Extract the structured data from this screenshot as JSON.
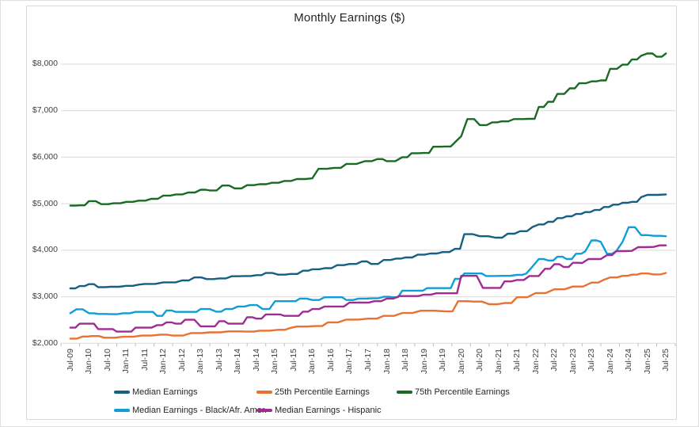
{
  "chart": {
    "title": "Monthly Earnings ($)",
    "y_axis": {
      "labels": [
        "$2,000",
        "$3,000",
        "$4,000",
        "$5,000",
        "$6,000",
        "$7,000",
        "$8,000"
      ]
    }
  },
  "chart_data": {
    "type": "line",
    "title": "Monthly Earnings ($)",
    "x_axis_note": "monthly data; x encoded as months since Jul-2009; axis labeled every 6 months",
    "months_per_tick": 6,
    "x_tick_labels": [
      "Jul-09",
      "Jan-10",
      "Jul-10",
      "Jan-11",
      "Jul-11",
      "Jan-12",
      "Jul-12",
      "Jan-13",
      "Jul-13",
      "Jan-14",
      "Jul-14",
      "Jan-15",
      "Jul-15",
      "Jan-16",
      "Jul-16",
      "Jan-17",
      "Jul-17",
      "Jan-18",
      "Jul-18",
      "Jan-19",
      "Jul-19",
      "Jan-20",
      "Jul-20",
      "Jan-21",
      "Jul-21",
      "Jan-22",
      "Jul-22",
      "Jan-23",
      "Jul-23",
      "Jan-24",
      "Jul-24",
      "Jan-25",
      "Jul-25"
    ],
    "ylim": [
      2000,
      8500
    ],
    "y_gridlines": [
      2000,
      3000,
      4000,
      5000,
      6000,
      7000,
      8000
    ],
    "grid": true,
    "legend_position": "bottom",
    "axis_color": "#D9D9D9",
    "tick_color": "#BFBFBF",
    "series": [
      {
        "name": "Median Earnings",
        "color": "#156082",
        "points": [
          [
            0,
            3180
          ],
          [
            3,
            3230
          ],
          [
            6,
            3270
          ],
          [
            9,
            3205
          ],
          [
            13,
            3215
          ],
          [
            18,
            3235
          ],
          [
            22,
            3260
          ],
          [
            24,
            3275
          ],
          [
            30,
            3310
          ],
          [
            34,
            3310
          ],
          [
            36,
            3350
          ],
          [
            40,
            3415
          ],
          [
            44,
            3380
          ],
          [
            48,
            3395
          ],
          [
            52,
            3440
          ],
          [
            56,
            3445
          ],
          [
            60,
            3465
          ],
          [
            63,
            3510
          ],
          [
            67,
            3475
          ],
          [
            71,
            3490
          ],
          [
            75,
            3560
          ],
          [
            78,
            3590
          ],
          [
            82,
            3615
          ],
          [
            86,
            3680
          ],
          [
            90,
            3705
          ],
          [
            94,
            3760
          ],
          [
            97,
            3705
          ],
          [
            101,
            3790
          ],
          [
            105,
            3820
          ],
          [
            108,
            3845
          ],
          [
            112,
            3905
          ],
          [
            116,
            3930
          ],
          [
            120,
            3960
          ],
          [
            124,
            4030
          ],
          [
            127,
            4345
          ],
          [
            132,
            4300
          ],
          [
            137,
            4270
          ],
          [
            141,
            4355
          ],
          [
            145,
            4410
          ],
          [
            149,
            4500
          ],
          [
            151,
            4555
          ],
          [
            154,
            4610
          ],
          [
            157,
            4690
          ],
          [
            160,
            4730
          ],
          [
            163,
            4780
          ],
          [
            166,
            4820
          ],
          [
            169,
            4865
          ],
          [
            172,
            4930
          ],
          [
            175,
            4980
          ],
          [
            178,
            5020
          ],
          [
            181,
            5040
          ],
          [
            184,
            5140
          ],
          [
            186,
            5190
          ],
          [
            192,
            5200
          ]
        ]
      },
      {
        "name": "25th Percentile Earnings",
        "color": "#E97132",
        "points": [
          [
            0,
            2100
          ],
          [
            4,
            2145
          ],
          [
            7,
            2155
          ],
          [
            11,
            2120
          ],
          [
            17,
            2140
          ],
          [
            23,
            2165
          ],
          [
            29,
            2185
          ],
          [
            33,
            2165
          ],
          [
            39,
            2220
          ],
          [
            45,
            2235
          ],
          [
            51,
            2255
          ],
          [
            57,
            2250
          ],
          [
            61,
            2270
          ],
          [
            67,
            2290
          ],
          [
            71,
            2330
          ],
          [
            73,
            2360
          ],
          [
            79,
            2370
          ],
          [
            83,
            2450
          ],
          [
            89,
            2510
          ],
          [
            96,
            2530
          ],
          [
            101,
            2590
          ],
          [
            107,
            2650
          ],
          [
            113,
            2700
          ],
          [
            121,
            2685
          ],
          [
            125,
            2905
          ],
          [
            130,
            2895
          ],
          [
            135,
            2840
          ],
          [
            140,
            2865
          ],
          [
            144,
            2990
          ],
          [
            150,
            3080
          ],
          [
            156,
            3160
          ],
          [
            162,
            3220
          ],
          [
            168,
            3305
          ],
          [
            172,
            3365
          ],
          [
            174,
            3415
          ],
          [
            178,
            3450
          ],
          [
            181,
            3475
          ],
          [
            184,
            3500
          ],
          [
            188,
            3480
          ],
          [
            192,
            3510
          ]
        ]
      },
      {
        "name": "75th Percentile Earnings",
        "color": "#196B24",
        "points": [
          [
            0,
            4960
          ],
          [
            3,
            4965
          ],
          [
            6,
            5055
          ],
          [
            10,
            4990
          ],
          [
            14,
            5010
          ],
          [
            18,
            5040
          ],
          [
            22,
            5065
          ],
          [
            26,
            5105
          ],
          [
            30,
            5175
          ],
          [
            34,
            5200
          ],
          [
            38,
            5240
          ],
          [
            42,
            5300
          ],
          [
            45,
            5285
          ],
          [
            49,
            5390
          ],
          [
            53,
            5330
          ],
          [
            57,
            5400
          ],
          [
            61,
            5420
          ],
          [
            65,
            5450
          ],
          [
            69,
            5490
          ],
          [
            73,
            5530
          ],
          [
            78,
            5545
          ],
          [
            80,
            5750
          ],
          [
            85,
            5770
          ],
          [
            89,
            5855
          ],
          [
            95,
            5915
          ],
          [
            99,
            5960
          ],
          [
            102,
            5915
          ],
          [
            107,
            6000
          ],
          [
            110,
            6085
          ],
          [
            114,
            6090
          ],
          [
            117,
            6225
          ],
          [
            121,
            6230
          ],
          [
            124,
            6320
          ],
          [
            126,
            6450
          ],
          [
            128,
            6820
          ],
          [
            132,
            6690
          ],
          [
            136,
            6750
          ],
          [
            139,
            6770
          ],
          [
            143,
            6820
          ],
          [
            148,
            6825
          ],
          [
            151,
            7080
          ],
          [
            154,
            7190
          ],
          [
            157,
            7360
          ],
          [
            161,
            7480
          ],
          [
            164,
            7590
          ],
          [
            168,
            7630
          ],
          [
            171,
            7650
          ],
          [
            174,
            7900
          ],
          [
            178,
            7990
          ],
          [
            181,
            8100
          ],
          [
            184,
            8180
          ],
          [
            186,
            8230
          ],
          [
            189,
            8160
          ],
          [
            192,
            8230
          ]
        ]
      },
      {
        "name": "Median Earnings - Black/Afr. Amer.",
        "color": "#0F9ED5",
        "points": [
          [
            0,
            2645
          ],
          [
            2,
            2730
          ],
          [
            4,
            2730
          ],
          [
            6,
            2645
          ],
          [
            9,
            2630
          ],
          [
            13,
            2625
          ],
          [
            17,
            2645
          ],
          [
            21,
            2675
          ],
          [
            25,
            2675
          ],
          [
            28,
            2590
          ],
          [
            31,
            2705
          ],
          [
            34,
            2675
          ],
          [
            39,
            2675
          ],
          [
            42,
            2735
          ],
          [
            45,
            2735
          ],
          [
            47,
            2680
          ],
          [
            50,
            2735
          ],
          [
            54,
            2790
          ],
          [
            58,
            2820
          ],
          [
            62,
            2735
          ],
          [
            66,
            2905
          ],
          [
            71,
            2905
          ],
          [
            74,
            2960
          ],
          [
            78,
            2930
          ],
          [
            82,
            2990
          ],
          [
            86,
            2990
          ],
          [
            89,
            2930
          ],
          [
            93,
            2960
          ],
          [
            97,
            2965
          ],
          [
            101,
            3000
          ],
          [
            104,
            2990
          ],
          [
            107,
            3130
          ],
          [
            112,
            3130
          ],
          [
            115,
            3185
          ],
          [
            121,
            3185
          ],
          [
            124,
            3385
          ],
          [
            127,
            3500
          ],
          [
            131,
            3500
          ],
          [
            134,
            3445
          ],
          [
            139,
            3450
          ],
          [
            144,
            3470
          ],
          [
            147,
            3500
          ],
          [
            149,
            3650
          ],
          [
            151,
            3810
          ],
          [
            154,
            3780
          ],
          [
            157,
            3860
          ],
          [
            160,
            3810
          ],
          [
            163,
            3925
          ],
          [
            166,
            3975
          ],
          [
            168,
            4210
          ],
          [
            171,
            4180
          ],
          [
            173,
            3925
          ],
          [
            176,
            3980
          ],
          [
            178,
            4180
          ],
          [
            180,
            4495
          ],
          [
            182,
            4495
          ],
          [
            184,
            4325
          ],
          [
            188,
            4310
          ],
          [
            192,
            4300
          ]
        ]
      },
      {
        "name": "Median Earnings - Hispanic",
        "color": "#A02B93",
        "points": [
          [
            0,
            2335
          ],
          [
            3,
            2420
          ],
          [
            6,
            2420
          ],
          [
            9,
            2305
          ],
          [
            12,
            2305
          ],
          [
            15,
            2250
          ],
          [
            18,
            2250
          ],
          [
            21,
            2335
          ],
          [
            24,
            2335
          ],
          [
            28,
            2390
          ],
          [
            31,
            2450
          ],
          [
            34,
            2420
          ],
          [
            37,
            2505
          ],
          [
            40,
            2505
          ],
          [
            42,
            2365
          ],
          [
            45,
            2365
          ],
          [
            48,
            2475
          ],
          [
            51,
            2420
          ],
          [
            54,
            2420
          ],
          [
            57,
            2560
          ],
          [
            60,
            2530
          ],
          [
            63,
            2620
          ],
          [
            66,
            2620
          ],
          [
            69,
            2590
          ],
          [
            72,
            2590
          ],
          [
            75,
            2680
          ],
          [
            78,
            2735
          ],
          [
            82,
            2790
          ],
          [
            86,
            2790
          ],
          [
            90,
            2875
          ],
          [
            94,
            2875
          ],
          [
            98,
            2905
          ],
          [
            102,
            2960
          ],
          [
            106,
            3015
          ],
          [
            110,
            3015
          ],
          [
            114,
            3045
          ],
          [
            118,
            3075
          ],
          [
            123,
            3075
          ],
          [
            126,
            3450
          ],
          [
            131,
            3450
          ],
          [
            133,
            3190
          ],
          [
            137,
            3190
          ],
          [
            140,
            3330
          ],
          [
            144,
            3360
          ],
          [
            148,
            3445
          ],
          [
            151,
            3445
          ],
          [
            153,
            3600
          ],
          [
            156,
            3700
          ],
          [
            159,
            3640
          ],
          [
            162,
            3730
          ],
          [
            165,
            3725
          ],
          [
            167,
            3810
          ],
          [
            171,
            3810
          ],
          [
            173,
            3895
          ],
          [
            176,
            3980
          ],
          [
            181,
            3985
          ],
          [
            183,
            4065
          ],
          [
            188,
            4070
          ],
          [
            190,
            4105
          ],
          [
            192,
            4105
          ]
        ]
      }
    ]
  }
}
